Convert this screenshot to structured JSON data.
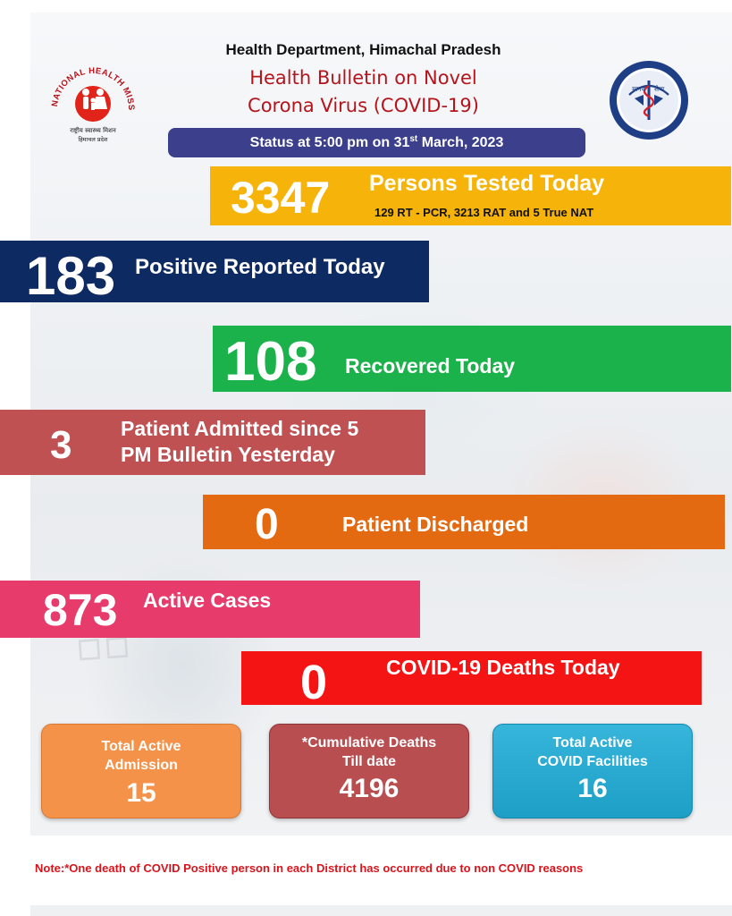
{
  "header": {
    "department": "Health Department, Himachal Pradesh",
    "title_line1": "Health Bulletin on Novel",
    "title_line2": "Corona Virus (COVID-19)"
  },
  "logos": {
    "left_text": "NATIONAL HEALTH MISSION",
    "left_sub1": "राष्ट्रीय स्वास्थ्य मिशन",
    "left_sub2": "हिमाचल प्रदेश",
    "right_text_left": "मानव",
    "right_text_right": "सेवा"
  },
  "status": {
    "prefix": "Status at 5:00 pm on 31",
    "sup": "st",
    "suffix": " March, 2023"
  },
  "tested": {
    "value": "3347",
    "label": "Persons Tested Today",
    "detail": "129 RT - PCR, 3213 RAT and 5 True NAT"
  },
  "positive": {
    "value": "183",
    "label": "Positive Reported Today"
  },
  "recovered": {
    "value": "108",
    "label": "Recovered Today"
  },
  "admitted": {
    "value": "3",
    "label_line1": "Patient Admitted since 5",
    "label_line2": "PM Bulletin Yesterday"
  },
  "discharged": {
    "value": "0",
    "label": "Patient Discharged"
  },
  "active": {
    "value": "873",
    "label": "Active Cases"
  },
  "deaths": {
    "value": "0",
    "label": "COVID-19 Deaths Today"
  },
  "cards": {
    "admission": {
      "line1": "Total Active",
      "line2": "Admission",
      "value": "15"
    },
    "cumulative": {
      "line1": "*Cumulative Deaths",
      "line2": "Till date",
      "value": "4196"
    },
    "facilities": {
      "line1": "Total Active",
      "line2": "COVID Facilities",
      "value": "16"
    }
  },
  "note": "Note:*One death of COVID Positive person in each District has occurred due to non COVID reasons",
  "colors": {
    "status_bar": "#3b3f8c",
    "tested": "#f6b40b",
    "positive": "#0e2a62",
    "recovered": "#1cb24b",
    "admitted": "#bf5153",
    "discharged": "#e46a12",
    "active": "#e73c6b",
    "deaths": "#f41414",
    "title_red": "#b4151c"
  }
}
